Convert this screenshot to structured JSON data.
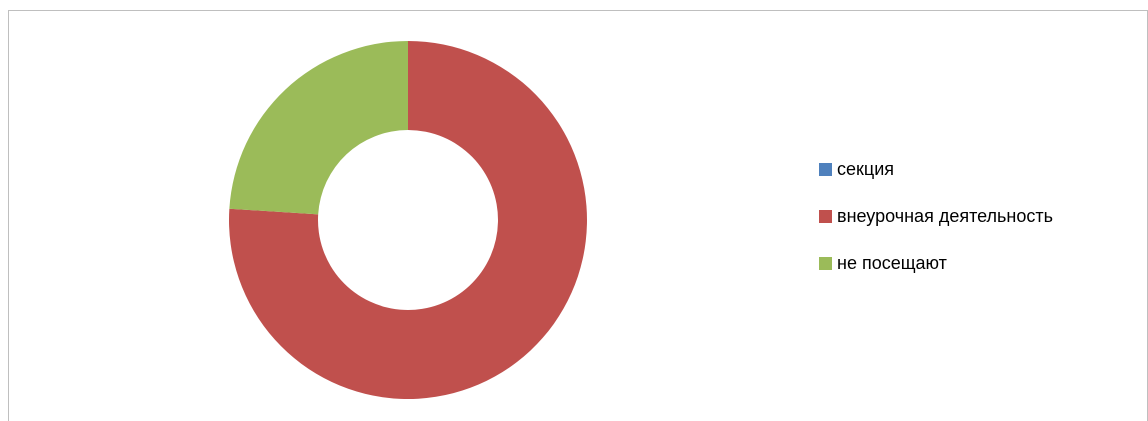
{
  "chart_data": {
    "type": "pie",
    "variant": "donut",
    "categories": [
      "секция",
      "внеурочная деятельность",
      "не посещают"
    ],
    "values": [
      0,
      76,
      24
    ],
    "colors": [
      "#4f81bd",
      "#c0504d",
      "#9bbb59"
    ],
    "legend": {
      "placement": "right",
      "entries": [
        "секция",
        "внеурочная деятельность",
        "не посещают"
      ]
    },
    "title": "",
    "data_labels": "none"
  }
}
